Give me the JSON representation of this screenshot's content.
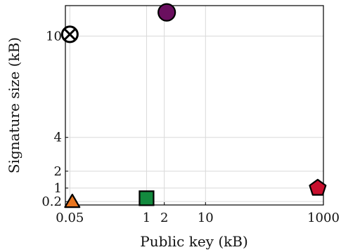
{
  "chart_data": {
    "type": "scatter",
    "title": "",
    "xlabel": "Public key (kB)",
    "ylabel": "Signature size (kB)",
    "x_scale": "log",
    "y_scale": "linear",
    "xlim": [
      0.042,
      1000
    ],
    "ylim": [
      0,
      11.8
    ],
    "x_ticks": [
      {
        "value": 0.05,
        "label": "0.05"
      },
      {
        "value": 1,
        "label": "1"
      },
      {
        "value": 2,
        "label": "2"
      },
      {
        "value": 10,
        "label": "10"
      },
      {
        "value": 1000,
        "label": "1000"
      }
    ],
    "y_ticks": [
      {
        "value": 0.2,
        "label": "0.2"
      },
      {
        "value": 1,
        "label": "1"
      },
      {
        "value": 2,
        "label": "2"
      },
      {
        "value": 4,
        "label": "4"
      },
      {
        "value": 10,
        "label": "10"
      }
    ],
    "grid": true,
    "legend": "none",
    "points": [
      {
        "x": 0.05,
        "y": 10.1,
        "marker": "circle-x",
        "color": "#ffffff",
        "stroke": "#000000"
      },
      {
        "x": 2.2,
        "y": 11.4,
        "marker": "circle",
        "color": "#6a0f5f",
        "stroke": "#000000"
      },
      {
        "x": 0.055,
        "y": 0.12,
        "marker": "triangle",
        "color": "#e9751f",
        "stroke": "#000000"
      },
      {
        "x": 1,
        "y": 0.4,
        "marker": "square",
        "color": "#138a3e",
        "stroke": "#000000"
      },
      {
        "x": 800,
        "y": 1.0,
        "marker": "pentagon",
        "color": "#c8102e",
        "stroke": "#000000"
      }
    ]
  }
}
